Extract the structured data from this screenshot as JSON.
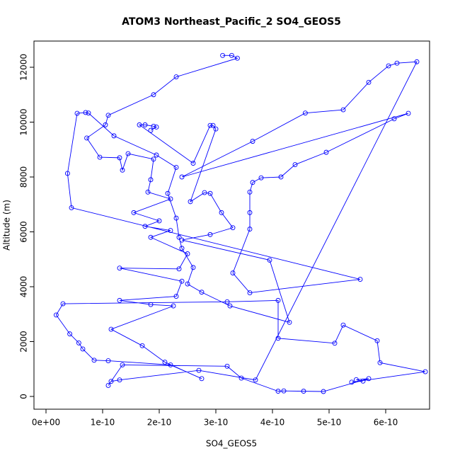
{
  "chart_data": {
    "type": "line",
    "title": "ATOM3 Northeast_Pacific_2 SO4_GEOS5",
    "x_label": "SO4_GEOS5",
    "y_label": "Altitude (m)",
    "color": "#0000ff",
    "markers": true,
    "xlim": [
      -2.125e-11,
      6.775e-10
    ],
    "ylim": [
      -465,
      12955
    ],
    "xticks": [
      {
        "value": 0,
        "label": "0e+00"
      },
      {
        "value": 1e-10,
        "label": "1e-10"
      },
      {
        "value": 2e-10,
        "label": "2e-10"
      },
      {
        "value": 3e-10,
        "label": "3e-10"
      },
      {
        "value": 4e-10,
        "label": "4e-10"
      },
      {
        "value": 5e-10,
        "label": "5e-10"
      },
      {
        "value": 6e-10,
        "label": "6e-10"
      }
    ],
    "yticks": [
      0,
      2000,
      4000,
      6000,
      8000,
      10000,
      12000
    ],
    "x": [
      3.12e-10,
      3.28e-10,
      3.38e-10,
      2.3e-10,
      1.9e-10,
      1.1e-10,
      1.05e-10,
      7.2e-11,
      9.5e-11,
      1.3e-10,
      1.35e-10,
      1.45e-10,
      1.9e-10,
      1.85e-10,
      1.8e-10,
      2.2e-10,
      1.55e-10,
      2e-10,
      1.75e-10,
      2.2e-10,
      1.85e-10,
      2.5e-10,
      2.35e-10,
      1.3e-10,
      2.4e-10,
      2.3e-10,
      1.3e-10,
      1.85e-10,
      2.25e-10,
      1.15e-10,
      1.7e-10,
      2.1e-10,
      2.75e-10,
      2.2e-10,
      1.1e-10,
      8.5e-11,
      6.5e-11,
      5.8e-11,
      4.2e-11,
      1.8e-11,
      3e-11,
      3.2e-10,
      4.1e-10,
      4.1e-10,
      5.1e-10,
      5.25e-10,
      5.85e-10,
      5.9e-10,
      6.7e-10,
      5.4e-10,
      5.6e-10,
      5.48e-10,
      5.7e-10,
      4.9e-10,
      4.55e-10,
      4.2e-10,
      4.1e-10,
      3.45e-10,
      3.2e-10,
      1.35e-10,
      1.1e-10,
      1.15e-10,
      1.3e-10,
      2.7e-10,
      3.7e-10,
      6.55e-10,
      6.2e-10,
      6.05e-10,
      5.7e-10,
      5.25e-10,
      4.58e-10,
      3.65e-10,
      2.4e-10,
      6.4e-10,
      6.15e-10,
      4.95e-10,
      4.4e-10,
      4.15e-10,
      3.8e-10,
      3.65e-10,
      3.6e-10,
      3.6e-10,
      3.6e-10,
      3.3e-10,
      3.6e-10,
      5.55e-10,
      4.5e-11,
      3.8e-11,
      5.5e-11,
      7e-11,
      7.5e-11,
      1.2e-10,
      1.95e-10,
      2.3e-10,
      2.15e-10,
      2.3e-10,
      2.35e-10,
      2.4e-10,
      2.6e-10,
      2.5e-10,
      2.75e-10,
      3.25e-10,
      4.3e-10,
      3.95e-10,
      2.4e-10,
      2.9e-10,
      3.3e-10,
      3.1e-10,
      2.9e-10,
      2.8e-10,
      2.55e-10,
      3e-10,
      2.95e-10,
      2.9e-10,
      2.6e-10,
      1.65e-10,
      1.75e-10,
      1.9e-10,
      1.95e-10,
      1.85e-10
    ],
    "y": [
      12430,
      12430,
      12330,
      11650,
      11000,
      10250,
      9900,
      9420,
      8720,
      8700,
      8250,
      8850,
      8650,
      7900,
      7450,
      7200,
      6700,
      6400,
      6200,
      6050,
      5800,
      5200,
      4650,
      4680,
      4200,
      3650,
      3500,
      3350,
      3300,
      2450,
      1850,
      1250,
      650,
      1150,
      1300,
      1320,
      1730,
      1950,
      2280,
      2970,
      3380,
      3450,
      3500,
      2120,
      1940,
      2600,
      2030,
      1230,
      900,
      520,
      560,
      610,
      650,
      180,
      190,
      200,
      190,
      670,
      1100,
      1150,
      400,
      550,
      600,
      950,
      600,
      12200,
      12150,
      12050,
      11450,
      10450,
      10330,
      9300,
      8000,
      10320,
      10120,
      8900,
      8450,
      8000,
      7970,
      7800,
      7450,
      6700,
      6100,
      4500,
      3780,
      4270,
      6880,
      8130,
      10320,
      10350,
      10330,
      9500,
      8800,
      8350,
      7400,
      6500,
      5800,
      5400,
      4700,
      4100,
      3800,
      3300,
      2700,
      4970,
      5700,
      5900,
      6150,
      6700,
      7400,
      7430,
      7100,
      9750,
      9880,
      9880,
      8500,
      9900,
      9900,
      9850,
      9820,
      9700
    ]
  }
}
